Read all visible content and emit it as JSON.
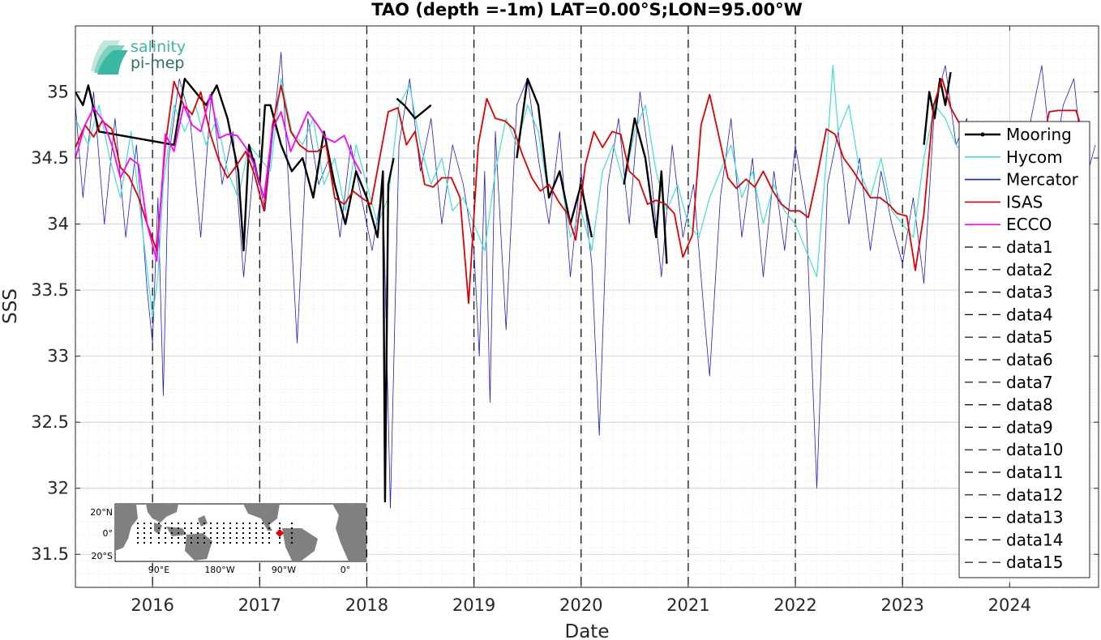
{
  "chart_data": {
    "type": "line",
    "title": "TAO (depth =-1m) LAT=0.00°S;LON=95.00°W",
    "xlabel": "Date",
    "ylabel": "SSS",
    "xlim": [
      2015.28,
      2024.83
    ],
    "ylim": [
      31.25,
      35.5
    ],
    "x_ticks": [
      2016,
      2017,
      2018,
      2019,
      2020,
      2021,
      2022,
      2023,
      2024
    ],
    "y_ticks": [
      31.5,
      32,
      32.5,
      33,
      33.5,
      34,
      34.5,
      35
    ],
    "grid": true,
    "legend_position": "right",
    "vertical_markers": [
      2016,
      2017,
      2018,
      2019,
      2020,
      2021,
      2022,
      2023
    ],
    "series": [
      {
        "name": "Mooring",
        "color": "#000000",
        "x": [
          2015.28,
          2015.35,
          2015.4,
          2015.5,
          2016.2,
          2016.3,
          2016.4,
          2016.5,
          2016.6,
          2016.7,
          2016.8,
          2016.85,
          2016.9,
          2017.0,
          2017.05,
          2017.1,
          2017.2,
          2017.3,
          2017.4,
          2017.5,
          2017.6,
          2017.7,
          2017.8,
          2017.9,
          2018.0,
          2018.1,
          2018.15,
          2018.17,
          2018.2,
          2018.25,
          null,
          2018.28,
          2018.35,
          2018.45,
          2018.6,
          null,
          2019.4,
          2019.5,
          2019.6,
          2019.7,
          2019.8,
          2019.9,
          2020.0,
          2020.1,
          null,
          2020.4,
          2020.5,
          2020.6,
          2020.65,
          2020.7,
          2020.75,
          2020.8,
          null,
          2023.2,
          2023.25,
          2023.3,
          2023.35,
          2023.4,
          2023.45
        ],
        "values": [
          35.0,
          34.9,
          35.05,
          34.7,
          34.6,
          35.1,
          35.0,
          34.9,
          35.05,
          34.8,
          34.4,
          33.8,
          34.6,
          34.3,
          34.9,
          34.9,
          34.6,
          34.4,
          34.5,
          34.2,
          34.7,
          34.3,
          34.0,
          34.4,
          34.2,
          33.9,
          34.4,
          31.9,
          34.3,
          34.5,
          null,
          34.95,
          34.9,
          34.8,
          34.9,
          null,
          34.5,
          35.1,
          34.9,
          34.2,
          34.4,
          34.0,
          34.3,
          33.9,
          null,
          34.3,
          34.8,
          34.5,
          34.2,
          33.9,
          34.4,
          33.7,
          null,
          34.6,
          35.0,
          34.8,
          35.1,
          34.9,
          35.15
        ]
      },
      {
        "name": "Hycom",
        "color": "#40e0d0",
        "x": [
          2015.28,
          2015.4,
          2015.5,
          2015.6,
          2015.7,
          2015.8,
          2015.9,
          2016.0,
          2016.05,
          2016.1,
          2016.2,
          2016.3,
          2016.4,
          2016.5,
          2016.6,
          2016.7,
          2016.8,
          2016.9,
          2017.0,
          2017.1,
          2017.2,
          2017.3,
          2017.4,
          2017.5,
          2017.6,
          2017.7,
          2017.8,
          2017.9,
          2018.0,
          2018.1,
          2018.2,
          2018.3,
          2018.4,
          2018.5,
          2018.6,
          2018.7,
          2018.8,
          2018.9,
          2019.0,
          2019.1,
          2019.2,
          2019.3,
          2019.4,
          2019.5,
          2019.6,
          2019.7,
          2019.8,
          2019.9,
          2020.0,
          2020.1,
          2020.2,
          2020.3,
          2020.4,
          2020.5,
          2020.6,
          2020.7,
          2020.8,
          2020.9,
          2021.0,
          2021.1,
          2021.2,
          2021.3,
          2021.4,
          2021.5,
          2021.6,
          2021.7,
          2021.8,
          2021.9,
          2022.0,
          2022.1,
          2022.2,
          2022.3,
          2022.35,
          2022.4,
          2022.5,
          2022.6,
          2022.7,
          2022.8,
          2022.9,
          2023.0,
          2023.1,
          2023.2,
          2023.3,
          2023.4,
          2023.5,
          2023.6
        ],
        "values": [
          34.8,
          34.6,
          34.9,
          34.5,
          34.2,
          34.7,
          34.0,
          33.3,
          33.6,
          34.3,
          34.9,
          34.7,
          34.9,
          34.6,
          34.8,
          34.4,
          34.2,
          34.6,
          34.5,
          34.4,
          35.1,
          34.7,
          34.6,
          34.8,
          34.3,
          34.5,
          34.1,
          34.6,
          34.3,
          34.0,
          34.2,
          34.9,
          35.05,
          34.6,
          34.3,
          34.5,
          34.1,
          34.2,
          34.0,
          33.8,
          34.4,
          34.8,
          34.6,
          34.9,
          34.7,
          34.2,
          34.4,
          33.9,
          34.1,
          33.8,
          34.4,
          34.6,
          34.3,
          34.7,
          34.9,
          34.4,
          34.1,
          34.3,
          34.0,
          33.9,
          34.2,
          34.4,
          34.6,
          34.2,
          34.4,
          34.0,
          34.3,
          34.1,
          34.0,
          33.8,
          33.6,
          34.6,
          35.2,
          34.7,
          34.9,
          34.4,
          34.2,
          34.5,
          34.1,
          34.0,
          33.9,
          34.5,
          34.9,
          34.8,
          34.6,
          34.5
        ]
      },
      {
        "name": "Mercator",
        "color": "#1c1cd0",
        "x": [
          2015.28,
          2015.35,
          2015.45,
          2015.55,
          2015.65,
          2015.75,
          2015.85,
          2015.95,
          2016.0,
          2016.05,
          2016.1,
          2016.15,
          2016.25,
          2016.35,
          2016.45,
          2016.55,
          2016.65,
          2016.75,
          2016.85,
          2016.95,
          2017.05,
          2017.15,
          2017.2,
          2017.25,
          2017.35,
          2017.45,
          2017.55,
          2017.65,
          2017.75,
          2017.85,
          2017.95,
          2018.05,
          2018.15,
          2018.22,
          2018.3,
          2018.4,
          2018.5,
          2018.6,
          2018.7,
          2018.8,
          2018.9,
          2019.0,
          2019.05,
          2019.1,
          2019.15,
          2019.2,
          2019.3,
          2019.4,
          2019.5,
          2019.6,
          2019.7,
          2019.8,
          2019.9,
          2020.0,
          2020.1,
          2020.17,
          2020.25,
          2020.35,
          2020.45,
          2020.55,
          2020.65,
          2020.75,
          2020.85,
          2020.95,
          2021.05,
          2021.15,
          2021.2,
          2021.3,
          2021.4,
          2021.5,
          2021.6,
          2021.7,
          2021.8,
          2021.9,
          2022.0,
          2022.1,
          2022.2,
          2022.3,
          2022.4,
          2022.5,
          2022.6,
          2022.7,
          2022.8,
          2022.9,
          2023.0,
          2023.1,
          2023.2,
          2023.3,
          2023.4,
          2023.5,
          2023.6,
          2023.7,
          2023.8,
          2023.9,
          2024.0,
          2024.1,
          2024.2,
          2024.3,
          2024.4,
          2024.5,
          2024.6,
          2024.7,
          2024.8
        ],
        "values": [
          34.9,
          34.2,
          35.0,
          34.0,
          34.8,
          33.9,
          34.6,
          33.5,
          33.1,
          34.2,
          32.7,
          34.5,
          35.1,
          34.8,
          33.9,
          35.0,
          34.3,
          34.7,
          33.6,
          34.5,
          34.1,
          34.9,
          35.3,
          34.6,
          33.1,
          34.8,
          34.3,
          34.5,
          33.9,
          34.6,
          34.2,
          33.8,
          34.3,
          31.85,
          34.6,
          35.1,
          34.4,
          34.8,
          34.0,
          34.6,
          34.3,
          33.8,
          33.0,
          34.4,
          32.65,
          34.7,
          33.2,
          34.9,
          35.1,
          34.5,
          34.0,
          34.7,
          33.6,
          34.4,
          33.7,
          32.4,
          34.3,
          34.8,
          34.0,
          35.0,
          34.4,
          33.6,
          34.6,
          33.9,
          34.3,
          33.3,
          32.85,
          34.2,
          34.8,
          33.9,
          34.5,
          33.6,
          34.4,
          33.8,
          34.6,
          34.1,
          32.0,
          34.3,
          34.7,
          34.0,
          34.5,
          33.8,
          34.4,
          34.0,
          33.7,
          34.2,
          33.55,
          34.9,
          35.2,
          34.6,
          34.8,
          34.0,
          34.7,
          33.9,
          34.5,
          34.1,
          34.8,
          35.2,
          34.4,
          34.9,
          35.1,
          34.3,
          34.6
        ]
      },
      {
        "name": "ISAS",
        "color": "#e00000",
        "x": [
          2015.28,
          2015.37,
          2015.45,
          2015.53,
          2015.62,
          2015.7,
          2015.78,
          2015.87,
          2015.95,
          2016.04,
          2016.12,
          2016.2,
          2016.29,
          2016.37,
          2016.45,
          2016.54,
          2016.62,
          2016.7,
          2016.79,
          2016.87,
          2016.95,
          2017.04,
          2017.12,
          2017.2,
          2017.29,
          2017.37,
          2017.45,
          2017.54,
          2017.62,
          2017.7,
          2017.79,
          2017.87,
          2017.95,
          2018.04,
          2018.12,
          2018.2,
          2018.29,
          2018.37,
          2018.45,
          2018.54,
          2018.62,
          2018.7,
          2018.79,
          2018.87,
          2018.95,
          2019.04,
          2019.12,
          2019.2,
          2019.29,
          2019.37,
          2019.45,
          2019.54,
          2019.62,
          2019.7,
          2019.79,
          2019.87,
          2019.95,
          2020.04,
          2020.12,
          2020.2,
          2020.29,
          2020.37,
          2020.45,
          2020.54,
          2020.62,
          2020.7,
          2020.79,
          2020.87,
          2020.95,
          2021.04,
          2021.12,
          2021.2,
          2021.29,
          2021.37,
          2021.45,
          2021.54,
          2021.62,
          2021.7,
          2021.79,
          2021.87,
          2021.95,
          2022.04,
          2022.12,
          2022.2,
          2022.29,
          2022.37,
          2022.45,
          2022.54,
          2022.62,
          2022.7,
          2022.79,
          2022.87,
          2022.95,
          2023.04,
          2023.12,
          2023.2,
          2023.29,
          2023.37,
          2023.45,
          2023.54,
          2023.62,
          2023.7,
          2023.79,
          2023.87,
          2023.95,
          2024.04,
          2024.12,
          2024.2,
          2024.29,
          2024.37,
          2024.45,
          2024.54,
          2024.62,
          2024.7
        ],
        "values": [
          34.58,
          34.75,
          34.66,
          34.78,
          34.72,
          34.43,
          34.36,
          34.2,
          34.0,
          33.8,
          34.6,
          35.08,
          34.9,
          34.83,
          35.0,
          34.68,
          34.48,
          34.35,
          34.45,
          34.55,
          34.38,
          34.1,
          34.75,
          35.05,
          34.7,
          34.6,
          34.55,
          34.55,
          34.6,
          34.2,
          34.15,
          34.25,
          34.2,
          34.15,
          34.5,
          34.85,
          34.88,
          34.6,
          34.7,
          34.3,
          34.28,
          34.35,
          34.35,
          34.2,
          33.4,
          34.6,
          34.95,
          34.8,
          34.78,
          34.72,
          34.53,
          34.35,
          34.25,
          34.3,
          34.17,
          34.08,
          33.88,
          34.45,
          34.7,
          34.58,
          34.7,
          34.68,
          34.4,
          34.33,
          34.15,
          34.18,
          34.15,
          34.08,
          33.75,
          33.92,
          34.75,
          34.98,
          34.65,
          34.35,
          34.27,
          34.34,
          34.28,
          34.4,
          34.25,
          34.15,
          34.1,
          34.1,
          34.05,
          34.35,
          34.72,
          34.68,
          34.5,
          34.4,
          34.3,
          34.2,
          34.2,
          34.15,
          34.08,
          34.06,
          33.65,
          34.08,
          34.9,
          35.1,
          34.88,
          34.75,
          34.65,
          34.73,
          34.68,
          34.62,
          34.5,
          34.58,
          34.6,
          34.6,
          34.55,
          34.85,
          34.86,
          34.86,
          34.86,
          34.65
        ]
      },
      {
        "name": "ECCO",
        "color": "#ff00ff",
        "x": [
          2015.28,
          2015.37,
          2015.45,
          2015.54,
          2015.62,
          2015.7,
          2015.79,
          2015.87,
          2015.95,
          2016.04,
          2016.12,
          2016.2,
          2016.29,
          2016.37,
          2016.45,
          2016.54,
          2016.62,
          2016.7,
          2016.79,
          2016.87,
          2016.95,
          2017.04,
          2017.12,
          2017.2,
          2017.29,
          2017.37,
          2017.45,
          2017.54,
          2017.62,
          2017.7,
          2017.79,
          2017.87,
          2017.95
        ],
        "values": [
          34.5,
          34.75,
          34.88,
          34.78,
          34.6,
          34.35,
          34.5,
          34.45,
          34.0,
          33.72,
          34.68,
          34.55,
          34.9,
          34.75,
          34.7,
          34.98,
          34.65,
          34.68,
          34.67,
          34.58,
          34.45,
          34.2,
          34.72,
          34.85,
          34.55,
          34.7,
          34.85,
          34.75,
          34.65,
          34.62,
          34.67,
          34.5,
          34.38
        ]
      },
      {
        "name": "data1",
        "color": "#000000",
        "x": [],
        "values": []
      },
      {
        "name": "data2",
        "color": "#000000",
        "x": [],
        "values": []
      },
      {
        "name": "data3",
        "color": "#000000",
        "x": [],
        "values": []
      },
      {
        "name": "data4",
        "color": "#000000",
        "x": [],
        "values": []
      },
      {
        "name": "data5",
        "color": "#000000",
        "x": [],
        "values": []
      },
      {
        "name": "data6",
        "color": "#000000",
        "x": [],
        "values": []
      },
      {
        "name": "data7",
        "color": "#000000",
        "x": [],
        "values": []
      },
      {
        "name": "data8",
        "color": "#000000",
        "x": [],
        "values": []
      },
      {
        "name": "data9",
        "color": "#000000",
        "x": [],
        "values": []
      },
      {
        "name": "data10",
        "color": "#000000",
        "x": [],
        "values": []
      },
      {
        "name": "data11",
        "color": "#000000",
        "x": [],
        "values": []
      },
      {
        "name": "data12",
        "color": "#000000",
        "x": [],
        "values": []
      },
      {
        "name": "data13",
        "color": "#000000",
        "x": [],
        "values": []
      },
      {
        "name": "data14",
        "color": "#000000",
        "x": [],
        "values": []
      },
      {
        "name": "data15",
        "color": "#000000",
        "x": [],
        "values": []
      }
    ]
  },
  "logo": {
    "line1": "salinity",
    "line2": "pi-mep",
    "color_top": "#3bb8a3",
    "color_bottom": "#2a6f6a"
  },
  "inset_map": {
    "lat_labels": [
      "20°N",
      "0°",
      "20°S"
    ],
    "lon_labels": [
      "90°E",
      "180°W",
      "90°W",
      "0°"
    ],
    "station_marker_color": "#e00000",
    "land_color": "#808080"
  }
}
